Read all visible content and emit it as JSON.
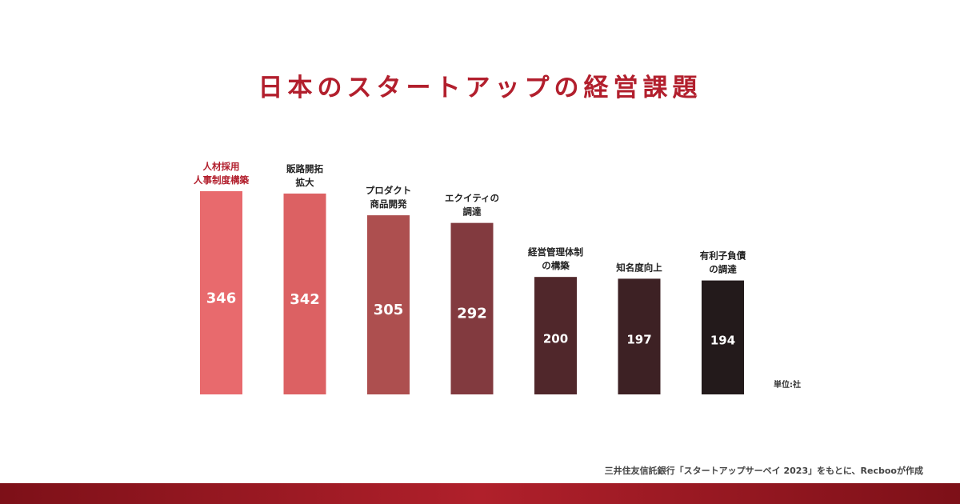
{
  "header": {
    "title": "日本のスタートアップの経営課題"
  },
  "chart_data": {
    "type": "bar",
    "title": "日本のスタートアップの経営課題",
    "categories": [
      [
        "人材採用",
        "人事制度構築"
      ],
      [
        "販路開拓",
        "拡大"
      ],
      [
        "プロダクト",
        "商品開発"
      ],
      [
        "エクイティの",
        "調達"
      ],
      [
        "経営管理体制",
        "の構築"
      ],
      [
        "知名度向上"
      ],
      [
        "有利子負債",
        "の調達"
      ]
    ],
    "values": [
      346,
      342,
      305,
      292,
      200,
      197,
      194
    ],
    "unit_label": "単位:社",
    "ylim": [
      0,
      346
    ],
    "bar_colors": [
      "#e86a6d",
      "#dc6163",
      "#ad4f4f",
      "#823a3f",
      "#50272b",
      "#3d2124",
      "#231a1b"
    ],
    "category_label_colors": [
      "#b21f2d",
      "#222222",
      "#222222",
      "#222222",
      "#222222",
      "#222222",
      "#222222"
    ]
  },
  "footer": {
    "source": "三井住友信託銀行「スタートアップサーベイ 2023」をもとに、Recbooが作成"
  }
}
